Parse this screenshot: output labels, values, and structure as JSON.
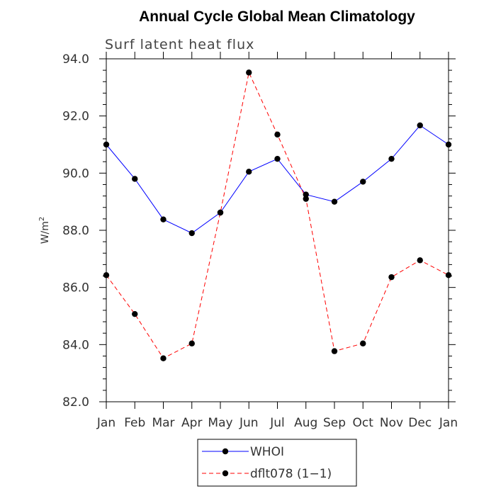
{
  "chart_data": {
    "type": "line",
    "title": "Annual Cycle Global Mean Climatology",
    "subtitle": "Surf latent heat flux",
    "xlabel": "",
    "ylabel": "W/m",
    "ylabel_sup": "2",
    "categories": [
      "Jan",
      "Feb",
      "Mar",
      "Apr",
      "May",
      "Jun",
      "Jul",
      "Aug",
      "Sep",
      "Oct",
      "Nov",
      "Dec",
      "Jan"
    ],
    "ylim": [
      82.0,
      94.0
    ],
    "yticks": [
      "82.0",
      "84.0",
      "86.0",
      "88.0",
      "90.0",
      "92.0",
      "94.0"
    ],
    "grid": false,
    "legend_position": "bottom-center",
    "series": [
      {
        "name": "WHOI",
        "color": "#0000ff",
        "style": "solid",
        "marker": "filled-circle",
        "values": [
          91.0,
          89.8,
          88.38,
          87.9,
          88.62,
          90.05,
          90.5,
          89.25,
          89.0,
          89.7,
          90.5,
          91.67,
          91.0
        ]
      },
      {
        "name": "dflt078 (1−1)",
        "color": "#ff0000",
        "style": "dashed",
        "marker": "filled-circle",
        "values": [
          86.43,
          85.07,
          83.52,
          84.04,
          88.62,
          93.52,
          91.35,
          89.1,
          83.77,
          84.04,
          86.36,
          86.95,
          86.43
        ]
      }
    ]
  }
}
